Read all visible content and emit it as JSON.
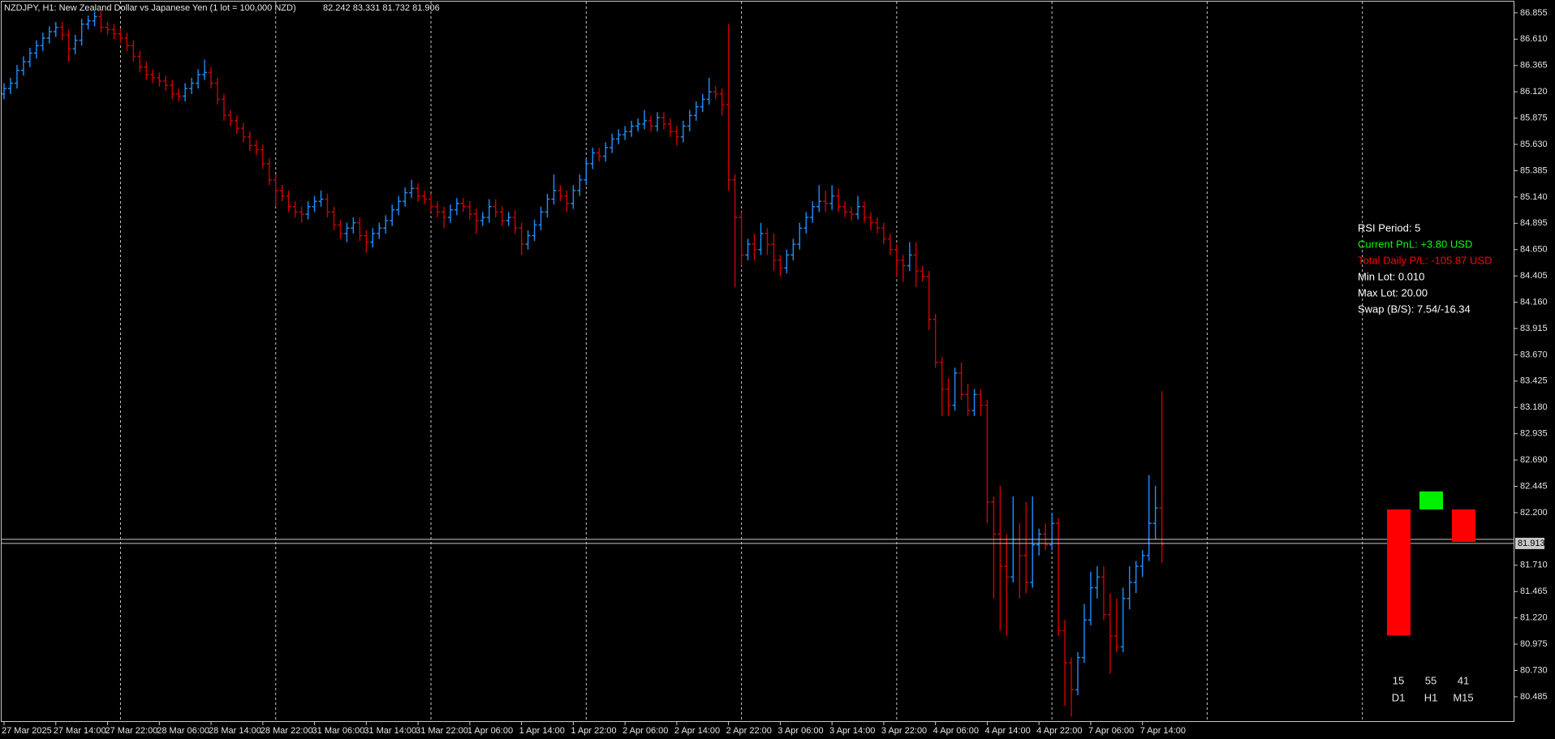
{
  "chart_data": {
    "type": "ohlc",
    "title": "NZDJPY, H1: New Zealand Dollar vs Japanese Yen (1 lot = 100,000 NZD)",
    "quote": "82.242 83.331 81.732 81.906",
    "up_color": "#1e90ff",
    "down_color": "#d00000",
    "categories": [
      "27 Mar 2025",
      null,
      null,
      null,
      null,
      null,
      null,
      null,
      "27 Mar 14:00",
      null,
      null,
      null,
      null,
      null,
      null,
      null,
      "27 Mar 22:00",
      null,
      null,
      null,
      null,
      null,
      null,
      null,
      "28 Mar 06:00",
      null,
      null,
      null,
      null,
      null,
      null,
      null,
      "28 Mar 14:00",
      null,
      null,
      null,
      null,
      null,
      null,
      null,
      "28 Mar 22:00",
      null,
      null,
      null,
      null,
      null,
      null,
      null,
      "31 Mar 06:00",
      null,
      null,
      null,
      null,
      null,
      null,
      null,
      "31 Mar 14:00",
      null,
      null,
      null,
      null,
      null,
      null,
      null,
      "31 Mar 22:00",
      null,
      null,
      null,
      null,
      null,
      null,
      null,
      "1 Apr 06:00",
      null,
      null,
      null,
      null,
      null,
      null,
      null,
      "1 Apr 14:00",
      null,
      null,
      null,
      null,
      null,
      null,
      null,
      "1 Apr 22:00",
      null,
      null,
      null,
      null,
      null,
      null,
      null,
      "2 Apr 06:00",
      null,
      null,
      null,
      null,
      null,
      null,
      null,
      "2 Apr 14:00",
      null,
      null,
      null,
      null,
      null,
      null,
      null,
      "2 Apr 22:00",
      null,
      null,
      null,
      null,
      null,
      null,
      null,
      "3 Apr 06:00",
      null,
      null,
      null,
      null,
      null,
      null,
      null,
      "3 Apr 14:00",
      null,
      null,
      null,
      null,
      null,
      null,
      null,
      "3 Apr 22:00",
      null,
      null,
      null,
      null,
      null,
      null,
      null,
      "4 Apr 06:00",
      null,
      null,
      null,
      null,
      null,
      null,
      null,
      "4 Apr 14:00",
      null,
      null,
      null,
      null,
      null,
      null,
      null,
      "4 Apr 22:00",
      null,
      null,
      null,
      null,
      null,
      null,
      null,
      "7 Apr 06:00",
      null,
      null,
      null,
      null,
      null,
      null,
      null,
      "7 Apr 14:00",
      null,
      null,
      null
    ],
    "open": [
      86.1,
      86.15,
      86.2,
      86.32,
      86.4,
      86.48,
      86.55,
      86.62,
      86.68,
      86.72,
      86.65,
      86.52,
      86.6,
      86.75,
      86.78,
      86.82,
      86.72,
      86.7,
      86.66,
      86.62,
      86.55,
      86.45,
      86.35,
      86.28,
      86.25,
      86.22,
      86.18,
      86.1,
      86.08,
      86.15,
      86.2,
      86.28,
      86.3,
      86.2,
      86.05,
      85.9,
      85.85,
      85.78,
      85.7,
      85.62,
      85.58,
      85.45,
      85.3,
      85.2,
      85.15,
      85.05,
      85.0,
      84.98,
      85.05,
      85.1,
      85.12,
      85.0,
      84.88,
      84.8,
      84.85,
      84.9,
      84.78,
      84.72,
      84.8,
      84.85,
      84.92,
      85.02,
      85.1,
      85.18,
      85.22,
      85.15,
      85.12,
      85.05,
      85.0,
      84.95,
      85.02,
      85.08,
      85.05,
      84.98,
      84.92,
      84.95,
      85.05,
      85.0,
      84.92,
      84.95,
      84.85,
      84.7,
      84.78,
      84.88,
      85.0,
      85.12,
      85.2,
      85.15,
      85.08,
      85.2,
      85.3,
      85.45,
      85.55,
      85.52,
      85.6,
      85.68,
      85.72,
      85.75,
      85.8,
      85.82,
      85.85,
      85.8,
      85.88,
      85.82,
      85.75,
      85.7,
      85.8,
      85.9,
      85.98,
      86.05,
      86.12,
      86.1,
      86.0,
      85.3,
      84.95,
      84.6,
      84.7,
      84.65,
      84.8,
      84.7,
      84.55,
      84.48,
      84.6,
      84.7,
      84.85,
      84.95,
      85.05,
      85.1,
      85.08,
      85.15,
      85.05,
      85.0,
      84.98,
      85.05,
      84.95,
      84.9,
      84.85,
      84.75,
      84.65,
      84.55,
      84.5,
      84.6,
      84.45,
      84.4,
      84.0,
      83.6,
      83.35,
      83.2,
      83.5,
      83.3,
      83.15,
      83.3,
      83.2,
      82.3,
      82.0,
      81.7,
      81.6,
      81.95,
      81.8,
      81.55,
      81.9,
      82.0,
      81.9,
      82.1,
      81.1,
      80.8,
      80.55,
      80.85,
      81.2,
      81.5,
      81.6,
      81.25,
      81.05,
      80.95,
      81.4,
      81.55,
      81.7,
      81.8,
      82.1,
      82.242
    ],
    "high": [
      86.2,
      86.25,
      86.37,
      86.45,
      86.53,
      86.6,
      86.67,
      86.73,
      86.77,
      86.77,
      86.7,
      86.65,
      86.8,
      86.83,
      86.87,
      86.87,
      86.77,
      86.75,
      86.71,
      86.67,
      86.6,
      86.5,
      86.4,
      86.33,
      86.3,
      86.27,
      86.23,
      86.15,
      86.2,
      86.25,
      86.33,
      86.42,
      86.35,
      86.25,
      86.1,
      85.95,
      85.9,
      85.83,
      85.75,
      85.67,
      85.63,
      85.5,
      85.35,
      85.25,
      85.2,
      85.1,
      85.05,
      85.1,
      85.15,
      85.2,
      85.17,
      85.05,
      84.93,
      84.9,
      84.95,
      84.95,
      84.83,
      84.85,
      84.9,
      84.97,
      85.07,
      85.15,
      85.23,
      85.3,
      85.27,
      85.2,
      85.17,
      85.1,
      85.05,
      85.07,
      85.13,
      85.13,
      85.1,
      85.03,
      85.0,
      85.12,
      85.12,
      85.05,
      85.0,
      85.02,
      84.9,
      84.83,
      84.93,
      85.05,
      85.17,
      85.35,
      85.25,
      85.2,
      85.25,
      85.35,
      85.5,
      85.6,
      85.6,
      85.65,
      85.73,
      85.77,
      85.8,
      85.85,
      85.87,
      85.95,
      85.9,
      85.93,
      85.93,
      85.87,
      85.8,
      85.85,
      85.95,
      86.03,
      86.1,
      86.25,
      86.17,
      86.15,
      86.75,
      85.35,
      85.0,
      84.75,
      84.8,
      84.9,
      84.85,
      84.8,
      84.6,
      84.65,
      84.75,
      84.9,
      85.0,
      85.1,
      85.25,
      85.2,
      85.25,
      85.22,
      85.1,
      85.05,
      85.15,
      85.1,
      85.0,
      84.95,
      84.9,
      84.8,
      84.7,
      84.6,
      84.72,
      84.72,
      84.5,
      84.45,
      84.05,
      83.65,
      83.45,
      83.55,
      83.6,
      83.4,
      83.35,
      83.35,
      83.25,
      82.35,
      82.45,
      82.0,
      82.35,
      82.1,
      82.3,
      82.35,
      82.05,
      82.1,
      82.2,
      82.15,
      81.2,
      80.85,
      80.9,
      81.35,
      81.65,
      81.7,
      81.7,
      81.45,
      81.4,
      81.5,
      81.7,
      81.75,
      81.85,
      82.55,
      82.45,
      83.331
    ],
    "low": [
      86.05,
      86.1,
      86.15,
      86.27,
      86.35,
      86.43,
      86.5,
      86.57,
      86.63,
      86.6,
      86.4,
      86.47,
      86.55,
      86.7,
      86.73,
      86.67,
      86.65,
      86.61,
      86.57,
      86.5,
      86.4,
      86.3,
      86.23,
      86.2,
      86.17,
      86.13,
      86.05,
      86.03,
      86.03,
      86.1,
      86.15,
      86.23,
      86.15,
      86.0,
      85.85,
      85.8,
      85.73,
      85.65,
      85.57,
      85.53,
      85.4,
      85.25,
      85.05,
      85.1,
      85.0,
      84.95,
      84.9,
      84.93,
      85.0,
      85.05,
      84.95,
      84.83,
      84.75,
      84.72,
      84.8,
      84.73,
      84.62,
      84.67,
      84.75,
      84.8,
      84.87,
      84.97,
      85.05,
      85.13,
      85.1,
      85.07,
      85.0,
      84.95,
      84.85,
      84.9,
      84.97,
      85.0,
      84.93,
      84.8,
      84.87,
      84.9,
      84.95,
      84.87,
      84.87,
      84.8,
      84.6,
      84.65,
      84.73,
      84.83,
      84.95,
      85.07,
      85.1,
      85.0,
      85.03,
      85.15,
      85.25,
      85.4,
      85.47,
      85.47,
      85.55,
      85.63,
      85.67,
      85.7,
      85.75,
      85.77,
      85.75,
      85.75,
      85.77,
      85.7,
      85.62,
      85.65,
      85.75,
      85.85,
      85.93,
      86.0,
      86.05,
      85.9,
      85.2,
      84.3,
      84.5,
      84.55,
      84.55,
      84.6,
      84.6,
      84.45,
      84.4,
      84.43,
      84.55,
      84.65,
      84.8,
      84.9,
      85.0,
      85.0,
      85.02,
      85.0,
      84.95,
      84.92,
      84.93,
      84.9,
      84.83,
      84.8,
      84.7,
      84.6,
      84.4,
      84.35,
      84.45,
      84.3,
      84.35,
      83.9,
      83.55,
      83.1,
      83.1,
      83.15,
      83.25,
      83.1,
      83.1,
      83.1,
      82.1,
      81.4,
      81.1,
      81.05,
      81.55,
      81.4,
      81.45,
      81.5,
      81.8,
      81.85,
      81.85,
      81.05,
      80.4,
      80.3,
      80.5,
      80.8,
      81.15,
      81.4,
      81.2,
      80.7,
      80.9,
      80.9,
      81.3,
      81.45,
      81.6,
      81.75,
      81.95,
      81.732
    ],
    "close": [
      86.15,
      86.2,
      86.32,
      86.4,
      86.48,
      86.55,
      86.62,
      86.68,
      86.72,
      86.65,
      86.52,
      86.6,
      86.75,
      86.78,
      86.82,
      86.72,
      86.7,
      86.66,
      86.62,
      86.55,
      86.45,
      86.35,
      86.28,
      86.25,
      86.22,
      86.18,
      86.1,
      86.08,
      86.15,
      86.2,
      86.28,
      86.3,
      86.2,
      86.05,
      85.9,
      85.85,
      85.78,
      85.7,
      85.62,
      85.58,
      85.45,
      85.3,
      85.2,
      85.15,
      85.05,
      85.0,
      84.98,
      85.05,
      85.1,
      85.12,
      85.0,
      84.88,
      84.8,
      84.85,
      84.9,
      84.78,
      84.72,
      84.8,
      84.85,
      84.92,
      85.02,
      85.1,
      85.18,
      85.22,
      85.15,
      85.12,
      85.05,
      85.0,
      84.95,
      85.02,
      85.08,
      85.05,
      84.98,
      84.92,
      84.95,
      85.05,
      85.0,
      84.92,
      84.95,
      84.85,
      84.7,
      84.78,
      84.88,
      85.0,
      85.12,
      85.2,
      85.15,
      85.08,
      85.2,
      85.3,
      85.45,
      85.55,
      85.52,
      85.6,
      85.68,
      85.72,
      85.75,
      85.8,
      85.82,
      85.85,
      85.8,
      85.88,
      85.82,
      85.75,
      85.7,
      85.8,
      85.9,
      85.98,
      86.05,
      86.12,
      86.1,
      86.0,
      85.3,
      84.95,
      84.6,
      84.7,
      84.65,
      84.8,
      84.7,
      84.55,
      84.48,
      84.6,
      84.7,
      84.85,
      84.95,
      85.05,
      85.1,
      85.08,
      85.15,
      85.05,
      85.0,
      84.98,
      85.05,
      84.95,
      84.9,
      84.85,
      84.75,
      84.65,
      84.55,
      84.5,
      84.6,
      84.45,
      84.4,
      84.0,
      83.6,
      83.35,
      83.2,
      83.5,
      83.3,
      83.15,
      83.3,
      83.2,
      82.3,
      82.0,
      81.7,
      81.6,
      81.95,
      81.8,
      81.55,
      81.9,
      82.0,
      81.9,
      82.1,
      81.1,
      80.8,
      80.55,
      80.85,
      81.2,
      81.5,
      81.6,
      81.25,
      81.05,
      80.95,
      81.4,
      81.55,
      81.7,
      81.8,
      82.1,
      82.242,
      81.906
    ],
    "ylim": [
      80.25,
      86.975
    ],
    "yticks": [
      86.855,
      {
        "value": 86.61,
        "label": "86.610"
      },
      86.365,
      {
        "value": 86.12,
        "label": "86.120"
      },
      85.875,
      {
        "value": 85.63,
        "label": "85.630"
      },
      85.385,
      {
        "value": 85.14,
        "label": "85.140"
      },
      84.895,
      {
        "value": 84.65,
        "label": "84.650"
      },
      84.405,
      {
        "value": 84.16,
        "label": "84.160"
      },
      83.915,
      {
        "value": 83.67,
        "label": "83.670"
      },
      83.425,
      {
        "value": 83.18,
        "label": "83.180"
      },
      82.935,
      {
        "value": 82.69,
        "label": "82.690"
      },
      82.445,
      {
        "value": 82.2,
        "label": "82.200"
      },
      {
        "value": 81.71,
        "label": "81.710"
      },
      81.465,
      {
        "value": 81.22,
        "label": "81.220"
      },
      80.975,
      {
        "value": 80.73,
        "label": "80.730"
      },
      80.485
    ],
    "bid": 81.913,
    "info_lines": [
      {
        "text": "RSI Period: 5",
        "color": "#ffffff"
      },
      {
        "text": "Current PnL: +3.80 USD",
        "color": "#00ff00"
      },
      {
        "text": "Total Daily P/L: -105.87 USD",
        "color": "#ff0000"
      },
      {
        "text": "Min Lot: 0.010",
        "color": "#ffffff"
      },
      {
        "text": "Max Lot: 20.00",
        "color": "#ffffff"
      },
      {
        "text": "Swap (B/S): 7.54/-16.34",
        "color": "#ffffff"
      }
    ],
    "rsi_panel": {
      "categories": [
        "D1",
        "H1",
        "M15"
      ],
      "values": [
        15,
        55,
        41
      ],
      "ylim": [
        0,
        100
      ],
      "up_color": "#00ee00",
      "down_color": "#ff0000"
    }
  }
}
